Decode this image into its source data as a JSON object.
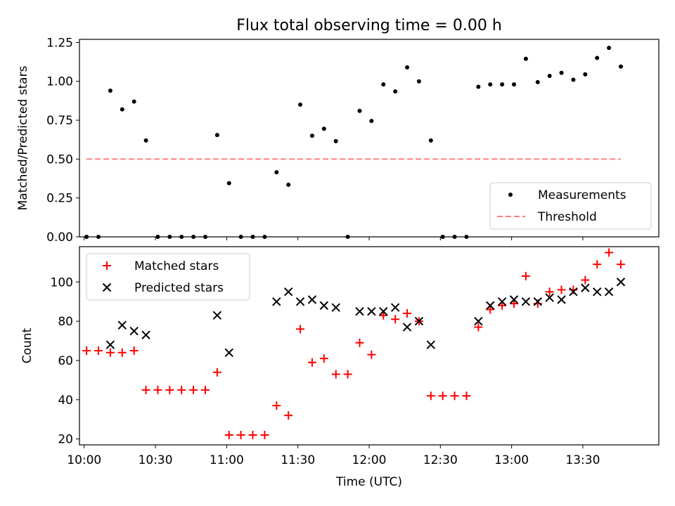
{
  "figure": {
    "title": "Flux total observing time = 0.00 h"
  },
  "chart_data": [
    {
      "type": "scatter",
      "ylabel": "Matched/Predicted stars",
      "xlim": [
        598,
        842
      ],
      "ylim": [
        0,
        1.27
      ],
      "yticks": [
        0,
        0.25,
        0.5,
        0.75,
        1.0,
        1.25
      ],
      "ytick_labels": [
        "0.00",
        "0.25",
        "0.50",
        "0.75",
        "1.00",
        "1.25"
      ],
      "xticks": [
        600,
        630,
        660,
        690,
        720,
        750,
        780,
        810
      ],
      "legend": {
        "position": "lower-right"
      },
      "series": [
        {
          "name": "Measurements",
          "color": "#000000",
          "marker": "dot",
          "x": [
            601,
            606,
            611,
            616,
            621,
            626,
            631,
            636,
            641,
            646,
            651,
            656,
            661,
            666,
            671,
            676,
            681,
            686,
            691,
            696,
            701,
            706,
            711,
            716,
            721,
            726,
            731,
            736,
            741,
            746,
            751,
            756,
            761,
            766,
            771,
            776,
            781,
            786,
            791,
            796,
            801,
            806,
            811,
            816,
            821,
            826
          ],
          "y": [
            0,
            0,
            0.94,
            0.82,
            0.87,
            0.62,
            0,
            0,
            0,
            0,
            0,
            0.655,
            0.345,
            0,
            0,
            0,
            0.415,
            0.335,
            0.85,
            0.65,
            0.695,
            0.615,
            0,
            0.81,
            0.745,
            0.98,
            0.935,
            1.09,
            1.0,
            0.62,
            0,
            0,
            0,
            0.965,
            0.98,
            0.98,
            0.98,
            1.145,
            0.995,
            1.035,
            1.055,
            1.01,
            1.045,
            1.15,
            1.215,
            1.095
          ]
        },
        {
          "name": "Threshold",
          "color": "#ff8080",
          "style": "dashed",
          "x": [
            601,
            826
          ],
          "y": [
            0.5,
            0.5
          ]
        }
      ]
    },
    {
      "type": "scatter",
      "xlabel": "Time (UTC)",
      "ylabel": "Count",
      "xlim": [
        598,
        842
      ],
      "ylim": [
        17,
        118
      ],
      "yticks": [
        20,
        40,
        60,
        80,
        100
      ],
      "xticks": [
        600,
        630,
        660,
        690,
        720,
        750,
        780,
        810
      ],
      "xtick_labels": [
        "10:00",
        "10:30",
        "11:00",
        "11:30",
        "12:00",
        "12:30",
        "13:00",
        "13:30"
      ],
      "legend": {
        "position": "upper-left"
      },
      "series": [
        {
          "name": "Matched stars",
          "color": "#ff0000",
          "marker": "plus",
          "x": [
            601,
            606,
            611,
            616,
            621,
            626,
            631,
            636,
            641,
            646,
            651,
            656,
            661,
            666,
            671,
            676,
            681,
            686,
            691,
            696,
            701,
            706,
            711,
            716,
            721,
            726,
            731,
            736,
            741,
            746,
            751,
            756,
            761,
            766,
            771,
            776,
            781,
            786,
            791,
            796,
            801,
            806,
            811,
            816,
            821,
            826
          ],
          "y": [
            65,
            65,
            64,
            64,
            65,
            45,
            45,
            45,
            45,
            45,
            45,
            54,
            22,
            22,
            22,
            22,
            37,
            32,
            76,
            59,
            61,
            53,
            53,
            69,
            63,
            83,
            81,
            84,
            80,
            42,
            42,
            42,
            42,
            77,
            86,
            88,
            89,
            103,
            89,
            95,
            96,
            96,
            101,
            109,
            115,
            109
          ]
        },
        {
          "name": "Predicted stars",
          "color": "#000000",
          "marker": "x",
          "x": [
            611,
            616,
            621,
            626,
            656,
            661,
            681,
            686,
            691,
            696,
            701,
            706,
            716,
            721,
            726,
            731,
            736,
            741,
            746,
            766,
            771,
            776,
            781,
            786,
            791,
            796,
            801,
            806,
            811,
            816,
            821,
            826
          ],
          "y": [
            68,
            78,
            75,
            73,
            83,
            64,
            90,
            95,
            90,
            91,
            88,
            87,
            85,
            85,
            85,
            87,
            77,
            80,
            68,
            80,
            88,
            90,
            91,
            90,
            90,
            92,
            91,
            95,
            97,
            95,
            95,
            100
          ]
        }
      ]
    }
  ]
}
